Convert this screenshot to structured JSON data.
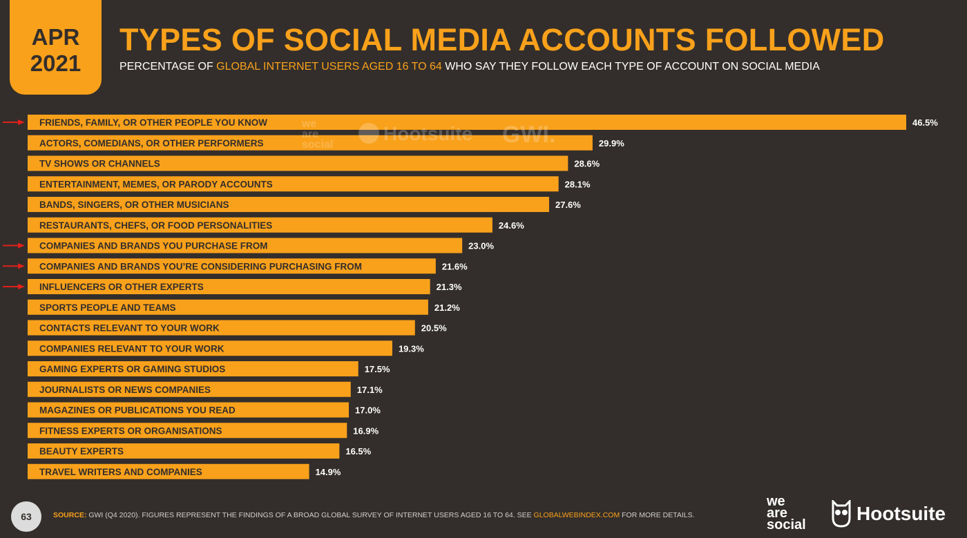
{
  "badge": {
    "month": "APR",
    "year": "2021"
  },
  "header": {
    "title": "TYPES OF SOCIAL MEDIA ACCOUNTS FOLLOWED",
    "subtitle_pre": "PERCENTAGE OF ",
    "subtitle_highlight": "GLOBAL INTERNET USERS AGED 16 TO 64",
    "subtitle_post": " WHO SAY THEY FOLLOW EACH TYPE OF ACCOUNT ON SOCIAL MEDIA"
  },
  "watermark": {
    "line1": "we",
    "line2": "are",
    "line3": "social",
    "brand1": "Hootsuite",
    "brand2": "GWI."
  },
  "chart_data": {
    "type": "bar",
    "orientation": "horizontal",
    "categories": [
      "FRIENDS, FAMILY, OR OTHER PEOPLE YOU KNOW",
      "ACTORS, COMEDIANS, OR OTHER PERFORMERS",
      "TV SHOWS OR CHANNELS",
      "ENTERTAINMENT, MEMES, OR PARODY ACCOUNTS",
      "BANDS, SINGERS, OR OTHER MUSICIANS",
      "RESTAURANTS, CHEFS, OR FOOD PERSONALITIES",
      "COMPANIES AND BRANDS YOU PURCHASE FROM",
      "COMPANIES AND BRANDS YOU’RE CONSIDERING PURCHASING FROM",
      "INFLUENCERS OR OTHER EXPERTS",
      "SPORTS PEOPLE AND TEAMS",
      "CONTACTS RELEVANT TO YOUR WORK",
      "COMPANIES RELEVANT TO YOUR WORK",
      "GAMING EXPERTS OR GAMING STUDIOS",
      "JOURNALISTS OR NEWS COMPANIES",
      "MAGAZINES OR PUBLICATIONS YOU READ",
      "FITNESS EXPERTS OR ORGANISATIONS",
      "BEAUTY EXPERTS",
      "TRAVEL WRITERS AND COMPANIES"
    ],
    "values": [
      46.5,
      29.9,
      28.6,
      28.1,
      27.6,
      24.6,
      23.0,
      21.6,
      21.3,
      21.2,
      20.5,
      19.3,
      17.5,
      17.1,
      17.0,
      16.9,
      16.5,
      14.9
    ],
    "value_labels": [
      "46.5%",
      "29.9%",
      "28.6%",
      "28.1%",
      "27.6%",
      "24.6%",
      "23.0%",
      "21.6%",
      "21.3%",
      "21.2%",
      "20.5%",
      "19.3%",
      "17.5%",
      "17.1%",
      "17.0%",
      "16.9%",
      "16.5%",
      "14.9%"
    ],
    "highlighted_indices": [
      0,
      6,
      7,
      8
    ],
    "xlim": [
      0,
      46.5
    ],
    "grid": false,
    "bar_color": "#f9a11b",
    "arrow_color": "#e0201b"
  },
  "footer": {
    "page_number": "63",
    "source_key": "SOURCE:",
    "source_text": " GWI (Q4 2020). FIGURES REPRESENT THE FINDINGS OF A BROAD GLOBAL SURVEY OF INTERNET USERS AGED 16 TO 64. SEE ",
    "source_url": "GLOBALWEBINDEX.COM",
    "source_tail": " FOR MORE DETAILS.",
    "logo_line1": "we",
    "logo_line2": "are",
    "logo_line3": "social",
    "hootsuite": "Hootsuite"
  },
  "colors": {
    "background": "#332e2b",
    "accent": "#f9a11b",
    "text": "#ffffff"
  }
}
